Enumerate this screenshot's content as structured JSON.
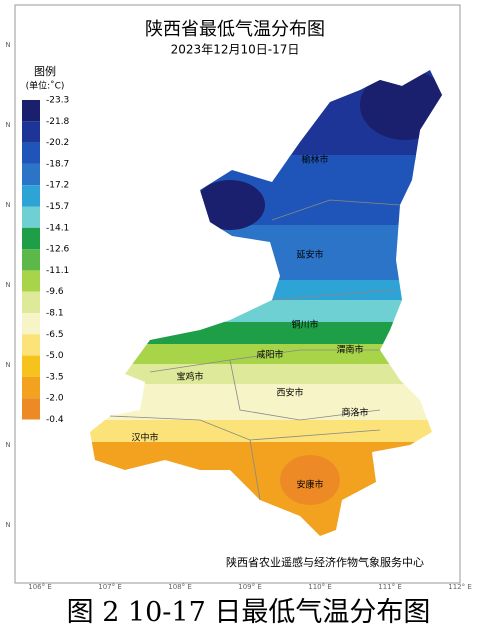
{
  "header": {
    "title": "陕西省最低气温分布图",
    "subtitle": "2023年12月10日-17日"
  },
  "legend": {
    "title": "图例",
    "unit": "(单位:˚C)",
    "labels": [
      "-23.3",
      "-21.8",
      "-20.2",
      "-18.7",
      "-17.2",
      "-15.7",
      "-14.1",
      "-12.6",
      "-11.1",
      "-9.6",
      "-8.1",
      "-6.5",
      "-5.0",
      "-3.5",
      "-2.0",
      "-0.4"
    ],
    "colors": [
      "#1a1f6e",
      "#1c3596",
      "#1f55b8",
      "#2b74c8",
      "#2ea3d6",
      "#6fd0d4",
      "#1f9e48",
      "#5cb848",
      "#a8d44a",
      "#dfe99a",
      "#f7f4c8",
      "#fbe37a",
      "#f6c21c",
      "#f2a21e",
      "#ee8a26"
    ]
  },
  "cities": [
    "榆林市",
    "延安市",
    "铜川市",
    "渭南市",
    "咸阳市",
    "宝鸡市",
    "西安市",
    "商洛市",
    "汉中市",
    "安康市"
  ],
  "footer": "陕西省农业遥感与经济作物气象服务中心",
  "x_axis": [
    "106° E",
    "107° E",
    "108° E",
    "109° E",
    "110° E",
    "111° E",
    "112° E"
  ],
  "y_axis": [
    "N",
    "N",
    "N",
    "N",
    "N",
    "N",
    "N"
  ],
  "caption": "图 2 10-17 日最低气温分布图"
}
